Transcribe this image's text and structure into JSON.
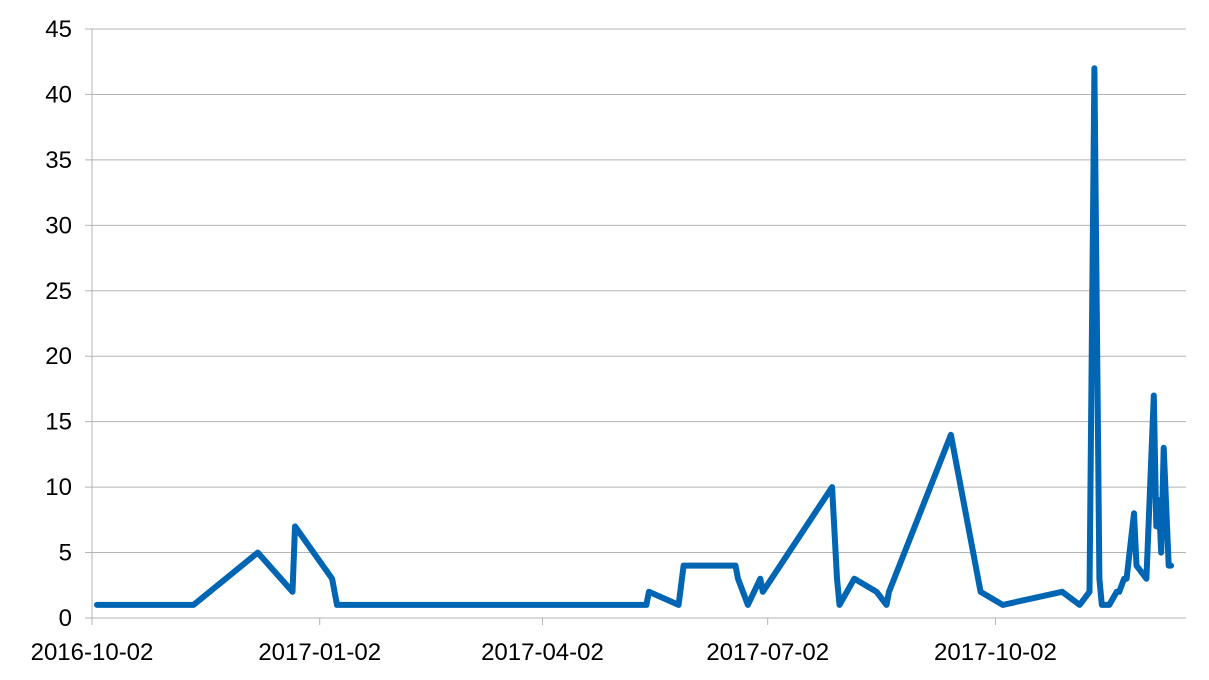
{
  "chart_data": {
    "type": "line",
    "title": "",
    "xlabel": "",
    "ylabel": "",
    "ylim": [
      0,
      45
    ],
    "xlim": [
      "2016-10-02",
      "2017-12-18"
    ],
    "yticks": [
      0,
      5,
      10,
      15,
      20,
      25,
      30,
      35,
      40,
      45
    ],
    "xticks": [
      "2016-10-02",
      "2017-01-02",
      "2017-04-02",
      "2017-07-02",
      "2017-10-02"
    ],
    "grid": true,
    "legend": "none",
    "color": "#0066b3",
    "series": [
      {
        "x": [
          "2016-10-04",
          "2016-11-12",
          "2016-12-08",
          "2016-12-22",
          "2016-12-23",
          "2017-01-07",
          "2017-01-09",
          "2017-05-14",
          "2017-05-15",
          "2017-05-27",
          "2017-05-29",
          "2017-06-19",
          "2017-06-20",
          "2017-06-24",
          "2017-06-29",
          "2017-06-30",
          "2017-07-28",
          "2017-07-30",
          "2017-07-31",
          "2017-08-06",
          "2017-08-15",
          "2017-08-19",
          "2017-08-20",
          "2017-09-14",
          "2017-09-26",
          "2017-10-05",
          "2017-10-29",
          "2017-11-05",
          "2017-11-09",
          "2017-11-11",
          "2017-11-13",
          "2017-11-14",
          "2017-11-17",
          "2017-11-20",
          "2017-11-21",
          "2017-11-23",
          "2017-11-24",
          "2017-11-27",
          "2017-11-28",
          "2017-12-02",
          "2017-12-05",
          "2017-12-06",
          "2017-12-07",
          "2017-12-08",
          "2017-12-09",
          "2017-12-11",
          "2017-12-12"
        ],
        "y": [
          1,
          1,
          5,
          2,
          7,
          3,
          1,
          1,
          2,
          1,
          4,
          4,
          3,
          1,
          3,
          2,
          10,
          3,
          1,
          3,
          2,
          1,
          2,
          14,
          2,
          1,
          2,
          1,
          2,
          42,
          3,
          1,
          1,
          2,
          2,
          3,
          3,
          8,
          4,
          3,
          17,
          7,
          9,
          5,
          13,
          4,
          4
        ]
      }
    ]
  }
}
